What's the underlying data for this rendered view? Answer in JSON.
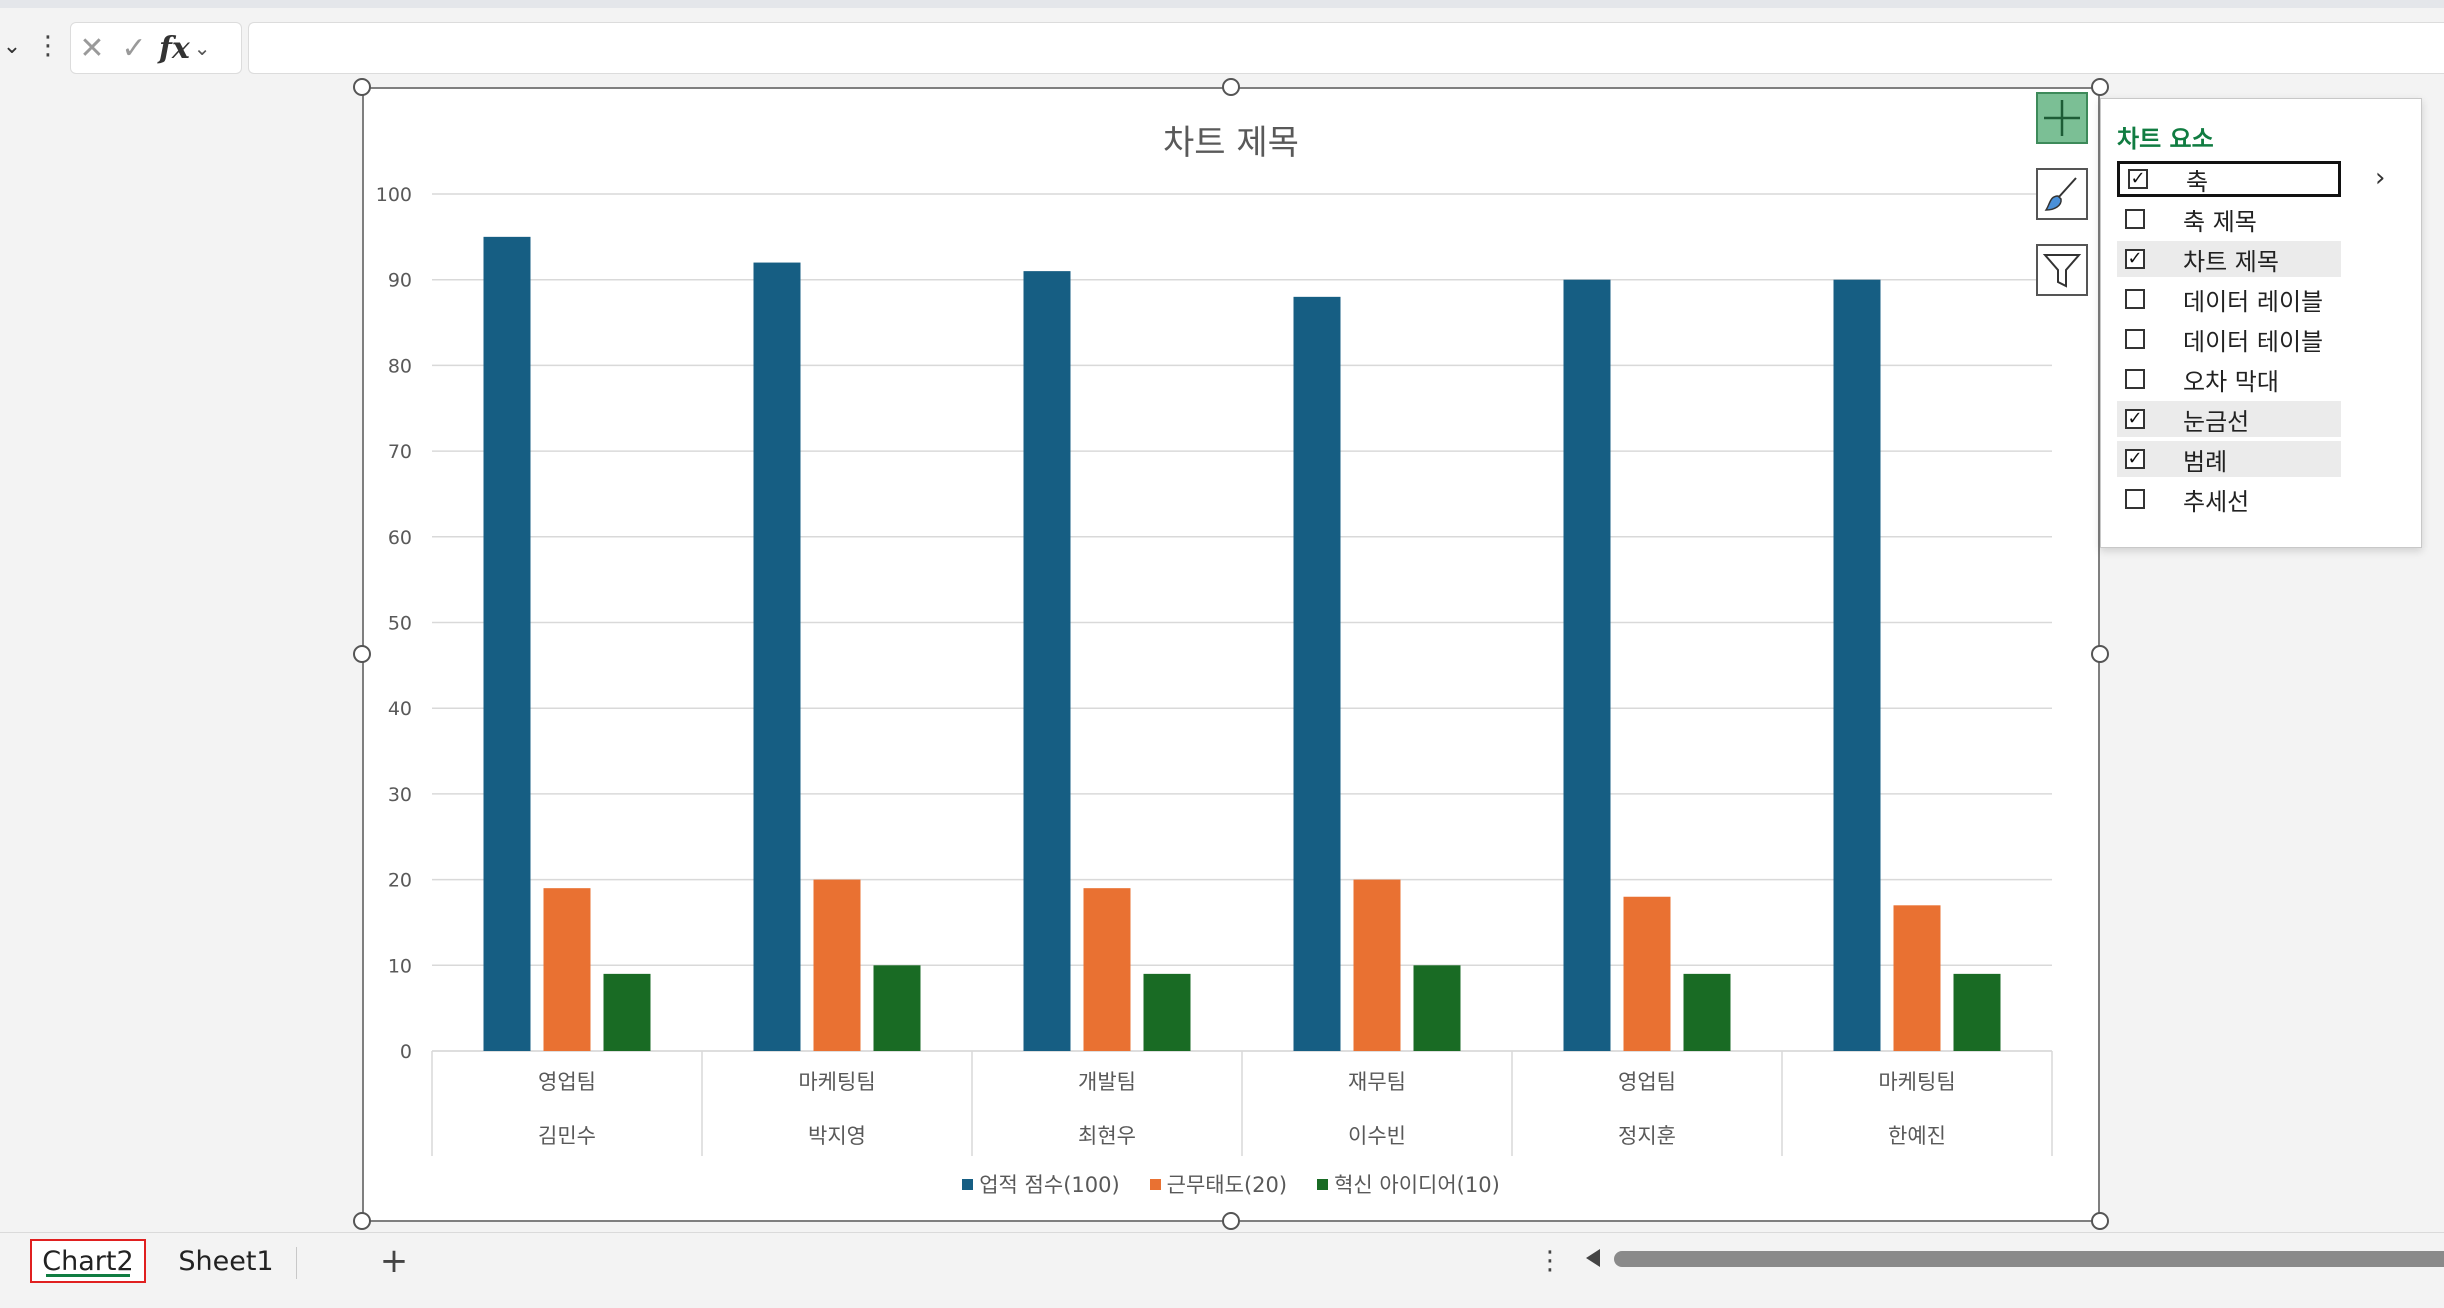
{
  "formula_bar": {
    "fx_label": "fx",
    "input_value": ""
  },
  "chart": {
    "title": "차트 제목"
  },
  "chart_data": {
    "type": "bar",
    "title": "차트 제목",
    "xlabel": "",
    "ylabel": "",
    "ylim": [
      0,
      100
    ],
    "yticks": [
      0,
      10,
      20,
      30,
      40,
      50,
      60,
      70,
      80,
      90,
      100
    ],
    "grid": true,
    "legend_position": "bottom",
    "categories": [
      {
        "team": "영업팀",
        "name": "김민수"
      },
      {
        "team": "마케팅팀",
        "name": "박지영"
      },
      {
        "team": "개발팀",
        "name": "최현우"
      },
      {
        "team": "재무팀",
        "name": "이수빈"
      },
      {
        "team": "영업팀",
        "name": "정지훈"
      },
      {
        "team": "마케팅팀",
        "name": "한예진"
      }
    ],
    "series": [
      {
        "name": "업적 점수(100)",
        "color": "#165e83",
        "values": [
          95,
          92,
          91,
          88,
          90,
          90
        ]
      },
      {
        "name": "근무태도(20)",
        "color": "#e97132",
        "values": [
          19,
          20,
          19,
          20,
          18,
          17
        ]
      },
      {
        "name": "혁신 아이디어(10)",
        "color": "#196b24",
        "values": [
          9,
          10,
          9,
          10,
          9,
          9
        ]
      }
    ]
  },
  "chart_elements_panel": {
    "title": "차트 요소",
    "items": [
      {
        "label": "축",
        "checked": true
      },
      {
        "label": "축 제목",
        "checked": false
      },
      {
        "label": "차트 제목",
        "checked": true
      },
      {
        "label": "데이터 레이블",
        "checked": false
      },
      {
        "label": "데이터 테이블",
        "checked": false
      },
      {
        "label": "오차 막대",
        "checked": false
      },
      {
        "label": "눈금선",
        "checked": true
      },
      {
        "label": "범례",
        "checked": true
      },
      {
        "label": "추세선",
        "checked": false
      }
    ]
  },
  "sheet_tabs": {
    "active": "Chart2",
    "tabs": [
      "Chart2",
      "Sheet1"
    ],
    "add_label": "+"
  },
  "colors": {
    "accent_green": "#107c41",
    "series_blue": "#165e83",
    "series_orange": "#e97132",
    "series_green": "#196b24"
  }
}
